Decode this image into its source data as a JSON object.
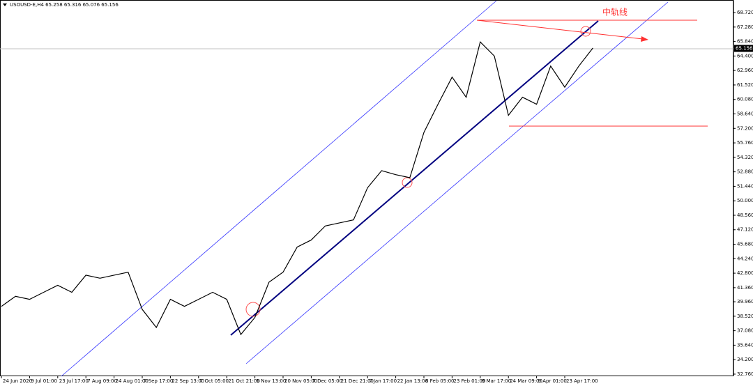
{
  "chart_data": {
    "type": "line",
    "title": "USOUSD-E,H4 65.258 65.316 65.076 65.156",
    "annotation": "中轨线",
    "current_price": {
      "value": 65.156,
      "label": "65.156"
    },
    "categories": [
      "24 Jun 2020",
      null,
      "9 Jul 01:00",
      null,
      "23 Jul 17:00",
      null,
      "7 Aug 09:00",
      null,
      "24 Aug 01:00",
      null,
      "7 Sep 17:00",
      null,
      "22 Sep 13:00",
      null,
      "7 Oct 05:00",
      null,
      "21 Oct 21:00",
      null,
      "5 Nov 13:00",
      null,
      "20 Nov 05:00",
      null,
      "7 Dec 05:00",
      null,
      "21 Dec 21:00",
      null,
      "7 Jan 17:00",
      null,
      "22 Jan 13:00",
      null,
      "8 Feb 05:00",
      null,
      "23 Feb 01:00",
      null,
      "9 Mar 17:00",
      null,
      "24 Mar 09:00",
      null,
      "9 Apr 01:00",
      null,
      "23 Apr 17:00",
      null,
      null
    ],
    "series": [
      {
        "color": "#000000",
        "values": [
          39.5,
          40.5,
          40.2,
          40.9,
          41.6,
          40.9,
          42.6,
          42.3,
          42.6,
          42.9,
          39.2,
          37.4,
          40.2,
          39.5,
          40.2,
          40.9,
          40.2,
          36.7,
          38.4,
          41.9,
          42.9,
          45.4,
          46.1,
          47.5,
          47.8,
          48.1,
          51.3,
          53.0,
          52.6,
          52.3,
          56.8,
          59.6,
          62.3,
          60.3,
          65.8,
          64.4,
          58.5,
          60.3,
          59.6,
          63.4,
          61.3,
          63.4,
          65.2
        ]
      }
    ],
    "ylim": [
      32.55,
      69.97
    ],
    "yticks": [
      {
        "value": 32.76,
        "label": "32.760"
      },
      {
        "value": 34.2,
        "label": "34.200"
      },
      {
        "value": 35.64,
        "label": "35.640"
      },
      {
        "value": 37.08,
        "label": "37.080"
      },
      {
        "value": 38.52,
        "label": "38.520"
      },
      {
        "value": 39.96,
        "label": "39.960"
      },
      {
        "value": 41.36,
        "label": "41.360"
      },
      {
        "value": 42.8,
        "label": "42.800"
      },
      {
        "value": 44.24,
        "label": "44.240"
      },
      {
        "value": 45.68,
        "label": "45.680"
      },
      {
        "value": 47.12,
        "label": "47.120"
      },
      {
        "value": 48.56,
        "label": "48.560"
      },
      {
        "value": 50,
        "label": "50.000"
      },
      {
        "value": 51.44,
        "label": "51.440"
      },
      {
        "value": 52.88,
        "label": "52.880"
      },
      {
        "value": 54.32,
        "label": "54.320"
      },
      {
        "value": 55.76,
        "label": "55.760"
      },
      {
        "value": 57.2,
        "label": "57.200"
      },
      {
        "value": 58.64,
        "label": "58.640"
      },
      {
        "value": 60.08,
        "label": "60.080"
      },
      {
        "value": 61.52,
        "label": "61.520"
      },
      {
        "value": 62.96,
        "label": "62.960"
      },
      {
        "value": 64.4,
        "label": "64.400"
      },
      {
        "value": 65.84,
        "label": "65.840"
      },
      {
        "value": 67.28,
        "label": "67.280"
      },
      {
        "value": 68.72,
        "label": "68.720"
      }
    ]
  }
}
